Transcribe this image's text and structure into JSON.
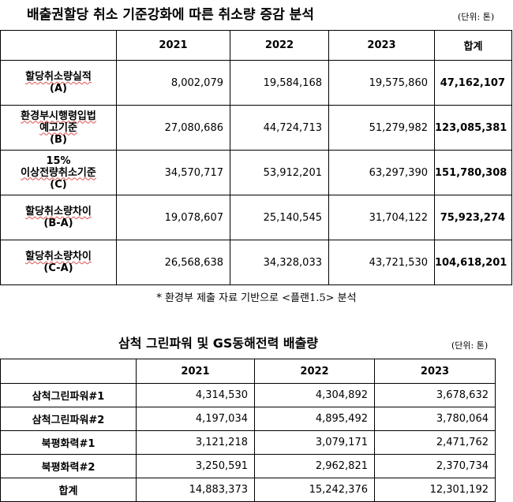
{
  "report1": {
    "title": "배출권할당 취소 기준강화에 따른 취소량 증감 분석",
    "unit": "(단위: 톤)",
    "columns": [
      "",
      "2021",
      "2022",
      "2023",
      "합계"
    ],
    "rows": [
      {
        "label_lines": [
          "할당취소량실적",
          "(A)"
        ],
        "values": [
          "8,002,079",
          "19,584,168",
          "19,575,860"
        ],
        "total": "47,162,107"
      },
      {
        "label_lines": [
          "환경부시행령입법",
          "예고기준",
          "(B)"
        ],
        "values": [
          "27,080,686",
          "44,724,713",
          "51,279,982"
        ],
        "total": "123,085,381"
      },
      {
        "label_lines": [
          "15%",
          "이상전량취소기준",
          "(C)"
        ],
        "values": [
          "34,570,717",
          "53,912,201",
          "63,297,390"
        ],
        "total": "151,780,308"
      },
      {
        "label_lines": [
          "할당취소량차이",
          "(B-A)"
        ],
        "values": [
          "19,078,607",
          "25,140,545",
          "31,704,122"
        ],
        "total": "75,923,274"
      },
      {
        "label_lines": [
          "할당취소량차이",
          "(C-A)"
        ],
        "values": [
          "26,568,638",
          "34,328,033",
          "43,721,530"
        ],
        "total": "104,618,201"
      }
    ],
    "note": "* 환경부 제출 자료 기반으로 <플랜1.5> 분석"
  },
  "report2": {
    "title": "삼척 그린파워 및 GS동해전력 배출량",
    "unit": "(단위: 톤)",
    "columns": [
      "",
      "2021",
      "2022",
      "2023"
    ],
    "rows": [
      {
        "label": "삼척그린파워#1",
        "values": [
          "4,314,530",
          "4,304,892",
          "3,678,632"
        ]
      },
      {
        "label": "삼척그린파워#2",
        "values": [
          "4,197,034",
          "4,895,492",
          "3,780,064"
        ]
      },
      {
        "label": "북평화력#1",
        "values": [
          "3,121,218",
          "3,079,171",
          "2,471,762"
        ]
      },
      {
        "label": "북평화력#2",
        "values": [
          "3,250,591",
          "2,962,821",
          "2,370,734"
        ]
      },
      {
        "label": "합계",
        "values": [
          "14,883,373",
          "15,242,376",
          "12,301,192"
        ]
      }
    ]
  }
}
